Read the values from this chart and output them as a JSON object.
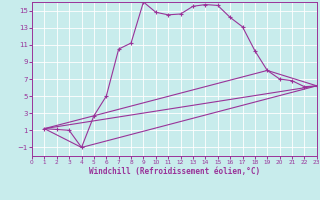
{
  "background_color": "#c8ecec",
  "line_color": "#993399",
  "marker": "+",
  "xlabel": "Windchill (Refroidissement éolien,°C)",
  "xlim": [
    0,
    23
  ],
  "ylim": [
    -2,
    16
  ],
  "xticks": [
    0,
    1,
    2,
    3,
    4,
    5,
    6,
    7,
    8,
    9,
    10,
    11,
    12,
    13,
    14,
    15,
    16,
    17,
    18,
    19,
    20,
    21,
    22,
    23
  ],
  "yticks": [
    -1,
    1,
    3,
    5,
    7,
    9,
    11,
    13,
    15
  ],
  "grid_color": "#b0d8d8",
  "series": [
    [
      1,
      1.2
    ],
    [
      2,
      1.1
    ],
    [
      3,
      1.0
    ],
    [
      4,
      -1.0
    ],
    [
      5,
      2.7
    ],
    [
      6,
      5.0
    ],
    [
      7,
      10.5
    ],
    [
      8,
      11.2
    ],
    [
      9,
      16.0
    ],
    [
      10,
      14.8
    ],
    [
      11,
      14.5
    ],
    [
      12,
      14.6
    ],
    [
      13,
      15.5
    ],
    [
      14,
      15.7
    ],
    [
      15,
      15.6
    ],
    [
      16,
      14.2
    ],
    [
      17,
      13.1
    ],
    [
      18,
      10.3
    ],
    [
      19,
      8.0
    ],
    [
      20,
      7.0
    ],
    [
      21,
      6.8
    ],
    [
      22,
      6.1
    ],
    [
      23,
      6.2
    ]
  ],
  "series2": [
    [
      1,
      1.2
    ],
    [
      23,
      6.2
    ]
  ],
  "series3": [
    [
      1,
      1.2
    ],
    [
      4,
      -1.0
    ],
    [
      23,
      6.2
    ]
  ],
  "series4": [
    [
      1,
      1.2
    ],
    [
      5,
      2.7
    ],
    [
      19,
      8.0
    ],
    [
      23,
      6.2
    ]
  ]
}
